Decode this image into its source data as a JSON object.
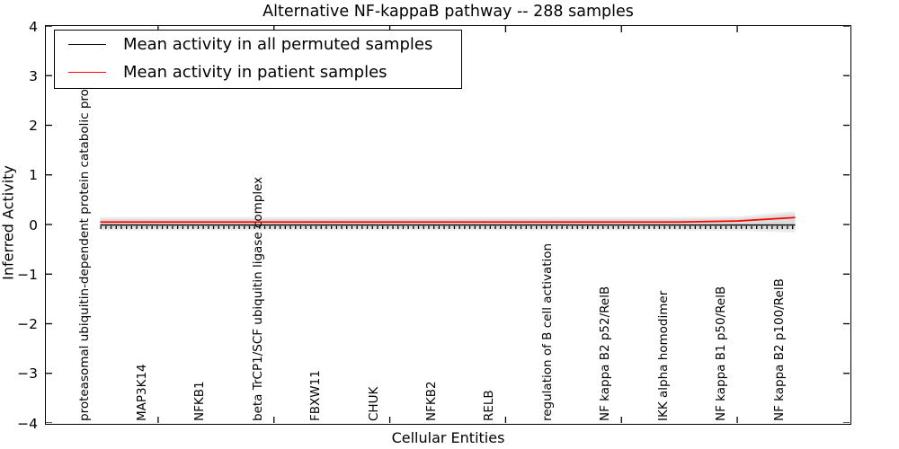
{
  "chart_data": {
    "type": "line",
    "title": "Alternative NF-kappaB pathway -- 288 samples",
    "xlabel": "Cellular Entities",
    "ylabel": "Inferred Activity",
    "ylim": [
      -4,
      4
    ],
    "yticks": [
      4,
      3,
      2,
      1,
      0,
      -1,
      -2,
      -3,
      -4
    ],
    "grid": false,
    "legend_position": "upper left",
    "categories": [
      "proteasomal ubiquitin-dependent protein catabolic process",
      "MAP3K14",
      "NFKB1",
      "beta TrCP1/SCF ubiquitin ligase complex",
      "FBXW11",
      "CHUK",
      "NFKB2",
      "RELB",
      "regulation of B cell activation",
      "NF kappa B2 p52/RelB",
      "IKK alpha homodimer",
      "NF kappa B1 p50/RelB",
      "NF kappa B2 p100/RelB"
    ],
    "series": [
      {
        "name": "Mean activity in all permuted samples",
        "color": "#000000",
        "values": [
          -0.01,
          -0.01,
          -0.01,
          -0.01,
          -0.01,
          -0.01,
          -0.01,
          -0.01,
          -0.01,
          -0.01,
          -0.01,
          -0.01,
          -0.01
        ]
      },
      {
        "name": "Mean activity in patient samples",
        "color": "#ff0000",
        "values": [
          0.05,
          0.05,
          0.05,
          0.05,
          0.05,
          0.05,
          0.05,
          0.05,
          0.05,
          0.05,
          0.05,
          0.07,
          0.14
        ]
      }
    ],
    "band": {
      "color": "#dcdcdc",
      "outer_color": "#ececec",
      "upper": [
        0.11,
        0.11,
        0.11,
        0.11,
        0.11,
        0.11,
        0.11,
        0.11,
        0.11,
        0.11,
        0.11,
        0.12,
        0.22
      ],
      "lower": [
        -0.08,
        -0.08,
        -0.08,
        -0.08,
        -0.08,
        -0.08,
        -0.08,
        -0.08,
        -0.08,
        -0.08,
        -0.08,
        -0.09,
        -0.11
      ],
      "outer_upper": [
        0.15,
        0.15,
        0.15,
        0.15,
        0.15,
        0.15,
        0.15,
        0.15,
        0.15,
        0.15,
        0.15,
        0.16,
        0.27
      ],
      "outer_lower": [
        -0.12,
        -0.12,
        -0.12,
        -0.12,
        -0.12,
        -0.12,
        -0.12,
        -0.12,
        -0.12,
        -0.12,
        -0.12,
        -0.13,
        -0.16
      ]
    }
  }
}
